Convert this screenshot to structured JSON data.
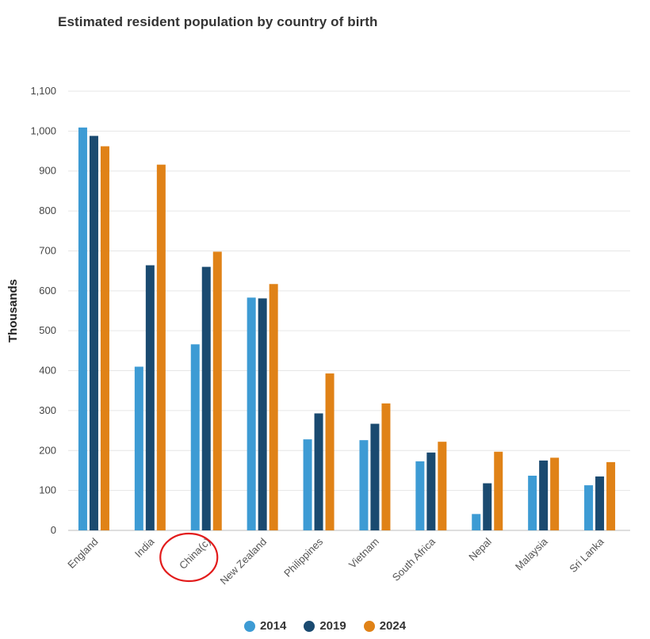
{
  "chart_data": {
    "type": "bar",
    "title": "Estimated resident population by country of birth",
    "ylabel": "Thousands",
    "xlabel": "",
    "ylim": [
      0,
      1100
    ],
    "yticks": [
      0,
      100,
      200,
      300,
      400,
      500,
      600,
      700,
      800,
      900,
      1000,
      1100
    ],
    "ytick_labels": [
      "0",
      "100",
      "200",
      "300",
      "400",
      "500",
      "600",
      "700",
      "800",
      "900",
      "1,000",
      "1,100"
    ],
    "grid": true,
    "legend_position": "bottom",
    "categories": [
      "England",
      "India",
      "China(c)",
      "New Zealand",
      "Philippines",
      "Vietnam",
      "South Africa",
      "Nepal",
      "Malaysia",
      "Sri Lanka"
    ],
    "series": [
      {
        "name": "2014",
        "color": "#3d9bd4",
        "values": [
          1009,
          410,
          466,
          583,
          228,
          226,
          173,
          41,
          137,
          113
        ]
      },
      {
        "name": "2019",
        "color": "#1a4a70",
        "values": [
          988,
          664,
          660,
          581,
          293,
          267,
          195,
          118,
          175,
          135
        ]
      },
      {
        "name": "2024",
        "color": "#e08217",
        "values": [
          962,
          916,
          698,
          617,
          393,
          318,
          222,
          197,
          182,
          171
        ]
      }
    ],
    "annotation": {
      "type": "circle",
      "target_category": "China(c)",
      "color": "#e21b1b"
    }
  }
}
